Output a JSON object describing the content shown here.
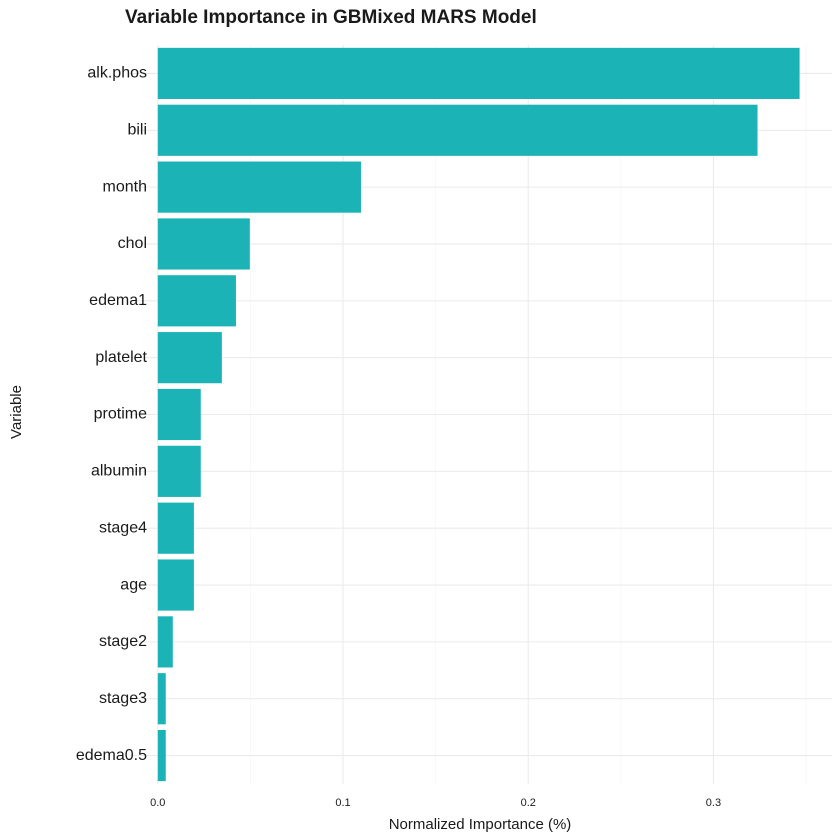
{
  "chart_data": {
    "type": "bar",
    "orientation": "horizontal",
    "title": "Variable Importance in GBMixed MARS Model",
    "xlabel": "Normalized Importance (%)",
    "ylabel": "Variable",
    "categories": [
      "alk.phos",
      "bili",
      "month",
      "chol",
      "edema1",
      "platelet",
      "protime",
      "albumin",
      "stage4",
      "age",
      "stage2",
      "stage3",
      "edema0.5"
    ],
    "values": [
      0.3465,
      0.3238,
      0.1097,
      0.0497,
      0.0422,
      0.0346,
      0.0232,
      0.0232,
      0.0195,
      0.0195,
      0.0081,
      0.0043,
      0.0043
    ],
    "color": "#1bb3b6",
    "xlim": [
      -0.015,
      0.364
    ],
    "xticks": [
      {
        "value": 0,
        "label": "0.0"
      },
      0.1,
      0.2,
      0.3
    ],
    "xminor": [
      0.05,
      0.15,
      0.25,
      0.35
    ],
    "grid": true
  }
}
